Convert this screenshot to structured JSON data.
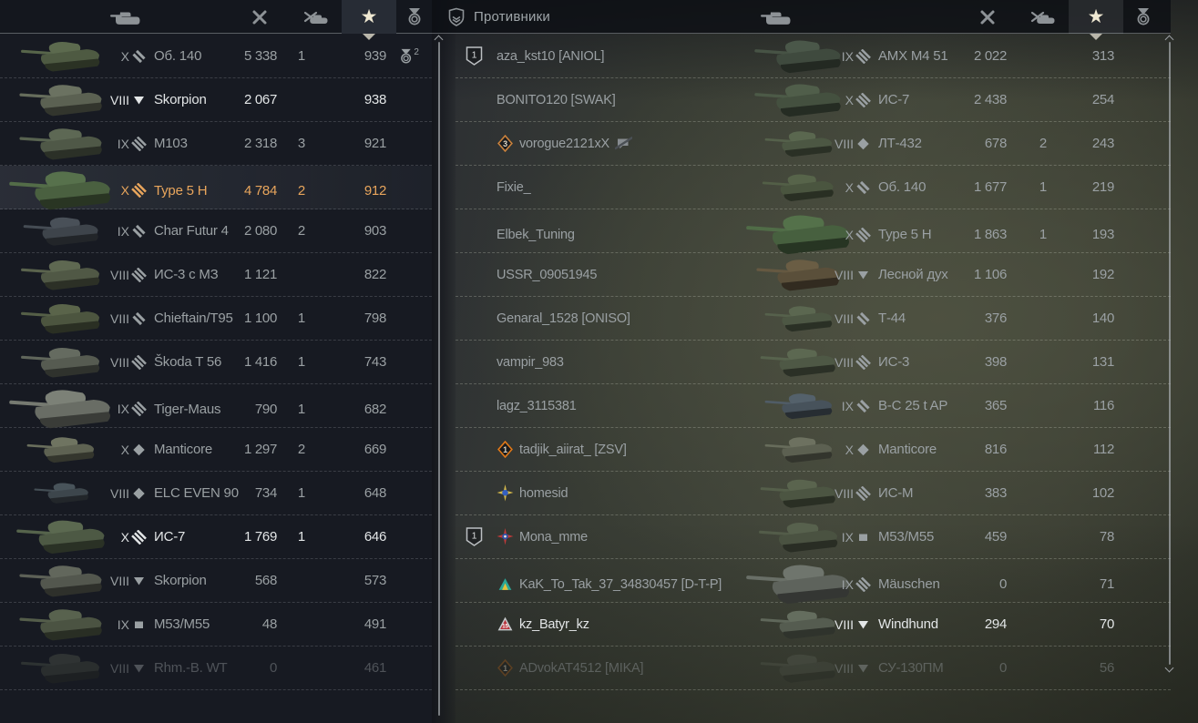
{
  "colors": {
    "accent_orange": "#e8a55c",
    "text_bright": "#e3e6e7",
    "text_normal": "#9aa0a3",
    "text_dim": "#6b7073",
    "panel_bg": "#171a22",
    "star_selected": "#efe8d2"
  },
  "columns": {
    "list": [
      "tank",
      "damage",
      "frags",
      "xp",
      "medals"
    ],
    "selected": "xp"
  },
  "left_panel": {
    "rows": [
      {
        "tier": "X",
        "class": "medium",
        "name": "Об. 140",
        "damage": "5 338",
        "frags": "1",
        "xp": "939",
        "medals": "2",
        "state": "normal",
        "tank": {
          "color": "#4e5a42",
          "scale": 1.0
        }
      },
      {
        "tier": "VIII",
        "class": "td",
        "name": "Skorpion",
        "damage": "2 067",
        "frags": "",
        "xp": "938",
        "medals": "",
        "state": "bright",
        "tank": {
          "color": "#5b6152",
          "scale": 1.05
        }
      },
      {
        "tier": "IX",
        "class": "heavy",
        "name": "M103",
        "damage": "2 318",
        "frags": "3",
        "xp": "921",
        "medals": "",
        "state": "normal",
        "tank": {
          "color": "#4f5847",
          "scale": 1.05
        }
      },
      {
        "tier": "X",
        "class": "heavy",
        "name": "Type 5 H",
        "damage": "4 784",
        "frags": "2",
        "xp": "912",
        "medals": "",
        "state": "self",
        "tank": {
          "color": "#4a6040",
          "scale": 1.28
        }
      },
      {
        "tier": "IX",
        "class": "medium",
        "name": "Char Futur 4",
        "damage": "2 080",
        "frags": "2",
        "xp": "903",
        "medals": "",
        "state": "normal",
        "tank": {
          "color": "#3e444b",
          "scale": 0.95
        }
      },
      {
        "tier": "VIII",
        "class": "heavy",
        "name": "ИС-3 с МЗ",
        "damage": "1 121",
        "frags": "",
        "xp": "822",
        "medals": "",
        "state": "normal",
        "tank": {
          "color": "#505845",
          "scale": 1.0
        }
      },
      {
        "tier": "VIII",
        "class": "medium",
        "name": "Chieftain/T95",
        "damage": "1 100",
        "frags": "1",
        "xp": "798",
        "medals": "",
        "state": "normal",
        "tank": {
          "color": "#4c553f",
          "scale": 1.0
        }
      },
      {
        "tier": "VIII",
        "class": "heavy",
        "name": "Škoda T 56",
        "damage": "1 416",
        "frags": "1",
        "xp": "743",
        "medals": "",
        "state": "normal",
        "tank": {
          "color": "#565b51",
          "scale": 1.0
        }
      },
      {
        "tier": "IX",
        "class": "heavy",
        "name": "Tiger-Maus",
        "damage": "790",
        "frags": "1",
        "xp": "682",
        "medals": "",
        "state": "normal",
        "tank": {
          "color": "#696d65",
          "scale": 1.28
        }
      },
      {
        "tier": "X",
        "class": "light",
        "name": "Manticore",
        "damage": "1 297",
        "frags": "2",
        "xp": "669",
        "medals": "",
        "state": "normal",
        "tank": {
          "color": "#5e6252",
          "scale": 0.85
        }
      },
      {
        "tier": "VIII",
        "class": "light",
        "name": "ELC EVEN 90",
        "damage": "734",
        "frags": "1",
        "xp": "648",
        "medals": "",
        "state": "normal",
        "tank": {
          "color": "#3d464c",
          "scale": 0.68
        }
      },
      {
        "tier": "X",
        "class": "heavy",
        "name": "ИС-7",
        "damage": "1 769",
        "frags": "1",
        "xp": "646",
        "medals": "",
        "state": "bright",
        "tank": {
          "color": "#4d5944",
          "scale": 1.12
        }
      },
      {
        "tier": "VIII",
        "class": "td",
        "name": "Skorpion",
        "damage": "568",
        "frags": "",
        "xp": "573",
        "medals": "",
        "state": "normal",
        "tank": {
          "color": "#53574e",
          "scale": 1.05
        }
      },
      {
        "tier": "IX",
        "class": "spg",
        "name": "M53/M55",
        "damage": "48",
        "frags": "",
        "xp": "491",
        "medals": "",
        "state": "normal",
        "tank": {
          "color": "#4b5342",
          "scale": 1.05
        }
      },
      {
        "tier": "VIII",
        "class": "td",
        "name": "Rhm.-B. WT",
        "damage": "0",
        "frags": "",
        "xp": "461",
        "medals": "",
        "state": "dim",
        "tank": {
          "color": "#454a40",
          "scale": 1.0
        }
      }
    ]
  },
  "right_panel": {
    "title": "Противники",
    "rows": [
      {
        "platoon": "1",
        "emblem": null,
        "muted": false,
        "player": "aza_kst10 [ANIOL]",
        "tier": "IX",
        "class": "heavy",
        "name": "AMX M4 51",
        "damage": "2 022",
        "frags": "",
        "xp": "313",
        "state": "normal",
        "tank": {
          "color": "#3f4a3e",
          "scale": 1.1
        }
      },
      {
        "platoon": "",
        "emblem": null,
        "muted": false,
        "player": "BONITO120 [SWAK]",
        "tier": "X",
        "class": "heavy",
        "name": "ИС-7",
        "damage": "2 438",
        "frags": "",
        "xp": "254",
        "state": "normal",
        "tank": {
          "color": "#44503f",
          "scale": 1.1
        }
      },
      {
        "platoon": "",
        "emblem": {
          "type": "diamond",
          "num": "3",
          "color": "#c9813c"
        },
        "muted": true,
        "player": "vorogue2121xX",
        "tier": "VIII",
        "class": "light",
        "name": "ЛТ-432",
        "damage": "678",
        "frags": "2",
        "xp": "243",
        "state": "normal",
        "tank": {
          "color": "#4c5743",
          "scale": 0.85
        }
      },
      {
        "platoon": "",
        "emblem": null,
        "muted": false,
        "player": "Fixie_",
        "tier": "X",
        "class": "medium",
        "name": "Об. 140",
        "damage": "1 677",
        "frags": "1",
        "xp": "219",
        "state": "normal",
        "tank": {
          "color": "#4a553f",
          "scale": 0.9
        }
      },
      {
        "platoon": "",
        "emblem": null,
        "muted": false,
        "player": "Elbek_Tuning",
        "tier": "X",
        "class": "heavy",
        "name": "Type 5 H",
        "damage": "1 863",
        "frags": "1",
        "xp": "193",
        "state": "normal",
        "tank": {
          "color": "#47603f",
          "scale": 1.3
        }
      },
      {
        "platoon": "",
        "emblem": null,
        "muted": false,
        "player": "USSR_09051945",
        "tier": "VIII",
        "class": "td",
        "name": "Лесной дух",
        "damage": "1 106",
        "frags": "",
        "xp": "192",
        "state": "normal",
        "tank": {
          "color": "#5a4f3a",
          "scale": 1.05
        }
      },
      {
        "platoon": "",
        "emblem": null,
        "muted": false,
        "player": "Genaral_1528 [ONISO]",
        "tier": "VIII",
        "class": "medium",
        "name": "Т-44",
        "damage": "376",
        "frags": "",
        "xp": "140",
        "state": "normal",
        "tank": {
          "color": "#4d5744",
          "scale": 0.85
        }
      },
      {
        "platoon": "",
        "emblem": null,
        "muted": false,
        "player": "vampir_983",
        "tier": "VIII",
        "class": "heavy",
        "name": "ИС-3",
        "damage": "398",
        "frags": "",
        "xp": "131",
        "state": "normal",
        "tank": {
          "color": "#4e5845",
          "scale": 0.95
        }
      },
      {
        "platoon": "",
        "emblem": null,
        "muted": false,
        "player": "lagz_3115381",
        "tier": "IX",
        "class": "medium",
        "name": "B-C 25 t AP",
        "damage": "365",
        "frags": "",
        "xp": "116",
        "state": "normal",
        "tank": {
          "color": "#47525b",
          "scale": 0.85
        }
      },
      {
        "platoon": "",
        "emblem": {
          "type": "diamond",
          "num": "1",
          "color": "#e07818"
        },
        "muted": false,
        "player": "tadjik_aiirat_ [ZSV]",
        "tier": "X",
        "class": "light",
        "name": "Manticore",
        "damage": "816",
        "frags": "",
        "xp": "112",
        "state": "normal",
        "tank": {
          "color": "#5c6051",
          "scale": 0.85
        }
      },
      {
        "platoon": "",
        "emblem": {
          "type": "star"
        },
        "muted": false,
        "player": "homesid",
        "tier": "VIII",
        "class": "heavy",
        "name": "ИС-М",
        "damage": "383",
        "frags": "",
        "xp": "102",
        "state": "normal",
        "tank": {
          "color": "#4c5542",
          "scale": 0.95
        }
      },
      {
        "platoon": "1",
        "emblem": {
          "type": "burst"
        },
        "muted": false,
        "player": "Mona_mme",
        "tier": "IX",
        "class": "spg",
        "name": "M53/M55",
        "damage": "459",
        "frags": "",
        "xp": "78",
        "state": "normal",
        "tank": {
          "color": "#4a5241",
          "scale": 1.0
        }
      },
      {
        "platoon": "",
        "emblem": {
          "type": "peak"
        },
        "muted": false,
        "player": "KaK_To_Tak_37_34830457 [D-T-P]",
        "tier": "IX",
        "class": "heavy",
        "name": "Mäuschen",
        "damage": "0",
        "frags": "",
        "xp": "71",
        "state": "normal",
        "tank": {
          "color": "#5e635c",
          "scale": 1.3
        }
      },
      {
        "platoon": "",
        "emblem": {
          "type": "tri",
          "num": "15"
        },
        "muted": false,
        "player": "kz_Batyr_kz",
        "tier": "VIII",
        "class": "td",
        "name": "Windhund",
        "damage": "294",
        "frags": "",
        "xp": "70",
        "state": "bright",
        "tank": {
          "color": "#555c50",
          "scale": 0.95
        }
      },
      {
        "platoon": "",
        "emblem": {
          "type": "diamond",
          "num": "1",
          "color": "#a05818"
        },
        "muted": false,
        "player": "ADvokAT4512 [MIKA]",
        "tier": "VIII",
        "class": "td",
        "name": "СУ-130ПМ",
        "damage": "0",
        "frags": "",
        "xp": "56",
        "state": "dim",
        "tank": {
          "color": "#474c42",
          "scale": 0.95
        }
      }
    ]
  }
}
